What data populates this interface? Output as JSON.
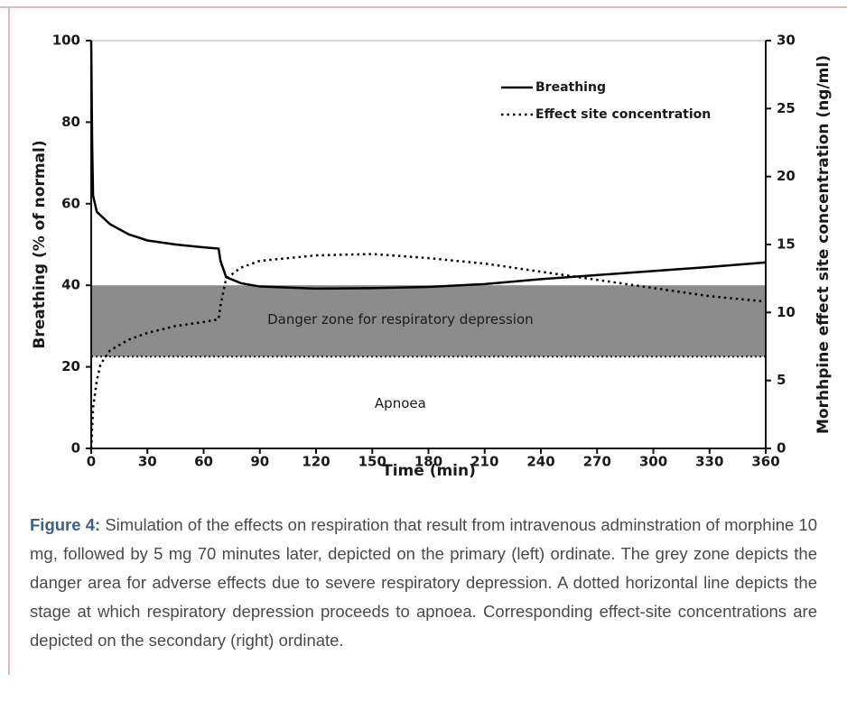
{
  "chart_data": {
    "type": "line",
    "xlabel": "Time (min)",
    "ylabel": "Breathing (% of normal)",
    "y2label": "Morhhpine effect site concentration (ng/ml)",
    "xlim": [
      0,
      360
    ],
    "xticks": [
      0,
      30,
      60,
      90,
      120,
      150,
      180,
      210,
      240,
      270,
      300,
      330,
      360
    ],
    "ylim": [
      0,
      100
    ],
    "yticks": [
      0,
      20,
      40,
      60,
      80,
      100
    ],
    "y2lim": [
      0,
      30
    ],
    "y2ticks": [
      0,
      5,
      10,
      15,
      20,
      25,
      30
    ],
    "danger_zone": {
      "label": "Danger zone for respiratory depression",
      "range": [
        22.5,
        40
      ],
      "color": "#8c8c8c"
    },
    "apnoea": {
      "label": "Apnoea",
      "threshold": 22.5
    },
    "series": [
      {
        "name": "Breathing",
        "color": "#000000",
        "style": "solid",
        "x": [
          0,
          0.5,
          1,
          3,
          10,
          20,
          30,
          45,
          60,
          68,
          69,
          72,
          80,
          90,
          120,
          150,
          180,
          210,
          240,
          270,
          300,
          330,
          360
        ],
        "values": [
          100,
          75,
          62,
          58,
          55,
          52.5,
          51,
          50,
          49.3,
          49,
          46,
          42,
          40.5,
          39.7,
          39.2,
          39.3,
          39.6,
          40.3,
          41.5,
          42.5,
          43.5,
          44.5,
          45.6
        ]
      },
      {
        "name": "Effect site concentration",
        "color": "#000000",
        "style": "dotted",
        "axis": "y2",
        "x": [
          0,
          1,
          3,
          5,
          10,
          20,
          30,
          45,
          60,
          68,
          69,
          72,
          80,
          90,
          120,
          150,
          180,
          210,
          240,
          270,
          300,
          330,
          360
        ],
        "values": [
          0,
          3,
          5,
          6.2,
          7.2,
          8,
          8.5,
          9,
          9.3,
          9.5,
          10.5,
          12.5,
          13.3,
          13.8,
          14.2,
          14.3,
          14,
          13.6,
          13,
          12.4,
          11.8,
          11.2,
          10.8
        ]
      }
    ]
  },
  "caption": {
    "label": "Figure 4:",
    "text": "Simulation of the effects on respiration that result from intravenous adminstration of morphine 10 mg, followed by 5 mg 70 minutes later, depicted on the primary (left) ordinate. The grey zone depicts the danger area for adverse effects due to severe respiratory depression. A dotted horizontal line depicts the stage at which respiratory depression proceeds to apnoea. Corresponding effect-site concentrations are depicted on the secondary (right) ordinate."
  }
}
